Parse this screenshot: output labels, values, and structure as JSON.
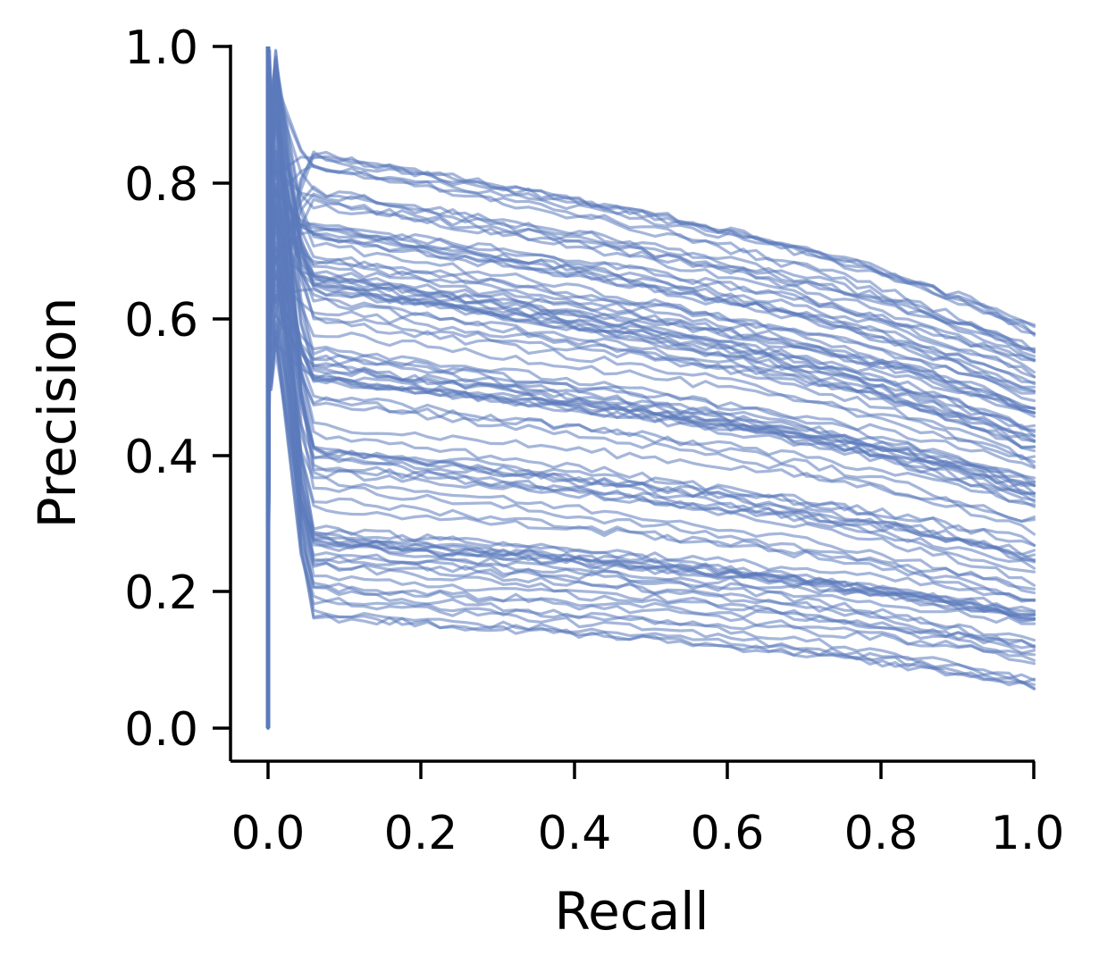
{
  "chart_data": {
    "type": "line",
    "xlabel": "Recall",
    "ylabel": "Precision",
    "xlim": [
      -0.05,
      1.0
    ],
    "ylim": [
      -0.05,
      1.0
    ],
    "xticks": [
      "0.0",
      "0.2",
      "0.4",
      "0.6",
      "0.8",
      "1.0"
    ],
    "yticks": [
      "0.0",
      "0.2",
      "0.4",
      "0.6",
      "0.8",
      "1.0"
    ],
    "grid": false,
    "legend": "none",
    "line_color": "#5b7abb",
    "line_opacity": 0.55,
    "recall_points": [
      0.0,
      0.01,
      0.03,
      0.05,
      0.1,
      0.2,
      0.3,
      0.4,
      0.5,
      0.6,
      0.7,
      0.8,
      0.9,
      0.95,
      1.0
    ],
    "series_count": 100,
    "series_envelope": {
      "precision_at_recall_0.05": [
        0.16,
        0.85
      ],
      "precision_at_recall_1.0": [
        0.06,
        0.59
      ]
    },
    "shared_endpoints": {
      "precision_at_recall_0.0": [
        0.0,
        1.0
      ]
    }
  }
}
